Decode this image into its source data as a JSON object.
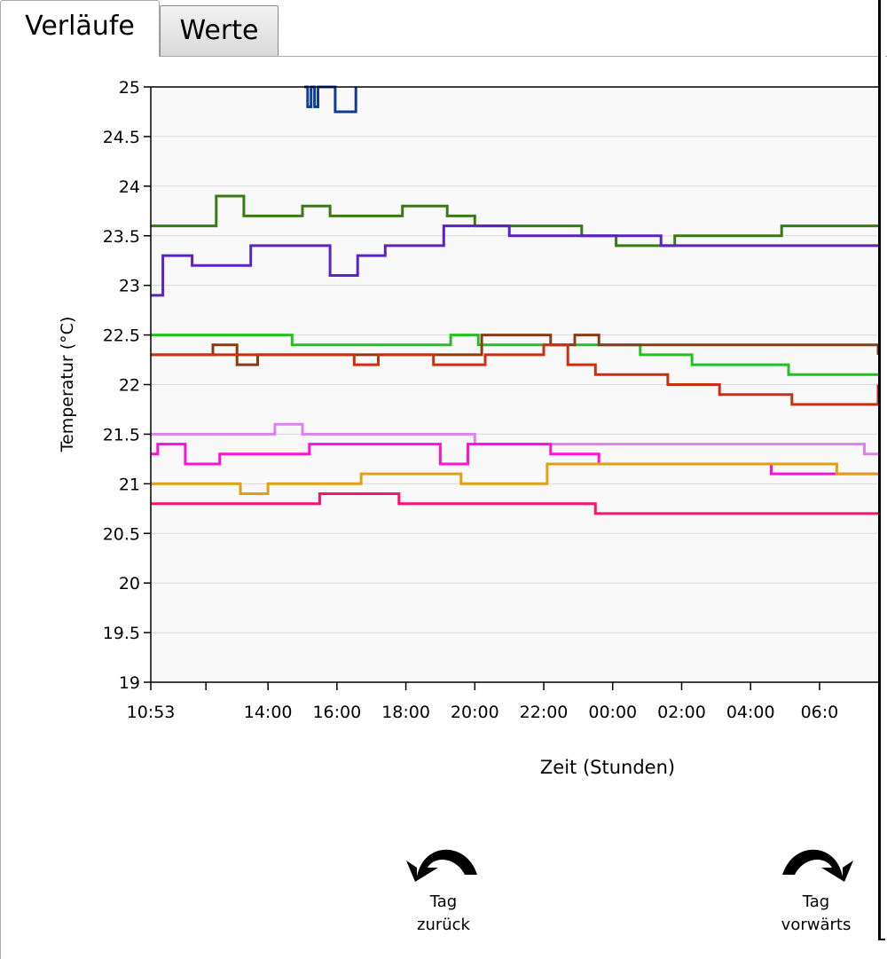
{
  "tabs": [
    {
      "label": "Verläufe",
      "active": true
    },
    {
      "label": "Werte",
      "active": false
    }
  ],
  "buttons": {
    "back": {
      "line1": "Tag",
      "line2": "zurück",
      "icon": "rotate-left-arrow-icon"
    },
    "forward": {
      "line1": "Tag",
      "line2": "vorwärts",
      "icon": "rotate-right-arrow-icon"
    }
  },
  "chart_data": {
    "type": "line",
    "step": true,
    "ylabel": "Temperatur (°C)",
    "xlabel": "Zeit (Stunden)",
    "ylim": [
      19,
      25
    ],
    "xlim_hours": [
      0,
      21.1
    ],
    "yticks": [
      "19",
      "19.5",
      "20",
      "20.5",
      "21",
      "21.5",
      "22",
      "22.5",
      "23",
      "23.5",
      "24",
      "24.5",
      "25"
    ],
    "xticks": [
      {
        "x": 0,
        "label": "10:53"
      },
      {
        "x": 1.6,
        "label": ""
      },
      {
        "x": 3.4,
        "label": "14:00"
      },
      {
        "x": 5.4,
        "label": "16:00"
      },
      {
        "x": 7.4,
        "label": "18:00"
      },
      {
        "x": 9.4,
        "label": "20:00"
      },
      {
        "x": 11.4,
        "label": "22:00"
      },
      {
        "x": 13.4,
        "label": "00:00"
      },
      {
        "x": 15.4,
        "label": "02:00"
      },
      {
        "x": 17.4,
        "label": "04:00"
      },
      {
        "x": 19.4,
        "label": "06:0"
      }
    ],
    "grid": true,
    "series": [
      {
        "color": "#3a7a12",
        "points": [
          [
            0,
            23.6
          ],
          [
            1.9,
            23.9
          ],
          [
            2.7,
            23.7
          ],
          [
            4.4,
            23.8
          ],
          [
            5.2,
            23.7
          ],
          [
            7.3,
            23.8
          ],
          [
            8.6,
            23.7
          ],
          [
            9.4,
            23.6
          ],
          [
            12.5,
            23.5
          ],
          [
            13.5,
            23.4
          ],
          [
            15.2,
            23.5
          ],
          [
            18.3,
            23.6
          ],
          [
            21.1,
            23.6
          ]
        ]
      },
      {
        "color": "#5a22c8",
        "points": [
          [
            0,
            22.9
          ],
          [
            0.35,
            23.3
          ],
          [
            1.2,
            23.2
          ],
          [
            2.9,
            23.4
          ],
          [
            5.2,
            23.1
          ],
          [
            6.0,
            23.3
          ],
          [
            6.8,
            23.4
          ],
          [
            8.5,
            23.6
          ],
          [
            10.4,
            23.5
          ],
          [
            11.0,
            23.5
          ],
          [
            14.8,
            23.4
          ],
          [
            21.1,
            23.4
          ]
        ]
      },
      {
        "color": "#22c022",
        "points": [
          [
            0,
            22.5
          ],
          [
            4.1,
            22.4
          ],
          [
            8.7,
            22.5
          ],
          [
            9.5,
            22.4
          ],
          [
            14.2,
            22.3
          ],
          [
            15.7,
            22.2
          ],
          [
            18.5,
            22.1
          ],
          [
            21.1,
            22.1
          ]
        ]
      },
      {
        "color": "#8b3a12",
        "points": [
          [
            0,
            22.3
          ],
          [
            1.8,
            22.4
          ],
          [
            2.5,
            22.2
          ],
          [
            3.1,
            22.3
          ],
          [
            4.1,
            22.3
          ],
          [
            9.6,
            22.5
          ],
          [
            11.6,
            22.4
          ],
          [
            12.3,
            22.5
          ],
          [
            13.0,
            22.4
          ],
          [
            21.1,
            22.3
          ]
        ]
      },
      {
        "color": "#c83010",
        "points": [
          [
            0,
            22.3
          ],
          [
            5.9,
            22.2
          ],
          [
            6.6,
            22.3
          ],
          [
            7.7,
            22.3
          ],
          [
            8.2,
            22.2
          ],
          [
            9.7,
            22.3
          ],
          [
            11.4,
            22.4
          ],
          [
            12.1,
            22.2
          ],
          [
            12.9,
            22.1
          ],
          [
            14.0,
            22.1
          ],
          [
            15.0,
            22.0
          ],
          [
            16.5,
            21.9
          ],
          [
            18.6,
            21.8
          ],
          [
            21.1,
            22.0
          ]
        ]
      },
      {
        "color": "#e080f0",
        "points": [
          [
            0,
            21.5
          ],
          [
            3.6,
            21.6
          ],
          [
            4.4,
            21.5
          ],
          [
            9.4,
            21.4
          ],
          [
            20.7,
            21.3
          ],
          [
            21.1,
            21.3
          ]
        ]
      },
      {
        "color": "#ff10d8",
        "points": [
          [
            0,
            21.3
          ],
          [
            0.2,
            21.4
          ],
          [
            1.0,
            21.2
          ],
          [
            2.0,
            21.3
          ],
          [
            4.6,
            21.4
          ],
          [
            8.4,
            21.2
          ],
          [
            9.2,
            21.4
          ],
          [
            11.6,
            21.3
          ],
          [
            13.0,
            21.2
          ],
          [
            18.0,
            21.1
          ],
          [
            21.1,
            21.1
          ]
        ]
      },
      {
        "color": "#e0a010",
        "points": [
          [
            0,
            21.0
          ],
          [
            2.6,
            20.9
          ],
          [
            3.4,
            21.0
          ],
          [
            6.1,
            21.1
          ],
          [
            9.0,
            21.0
          ],
          [
            11.5,
            21.2
          ],
          [
            19.9,
            21.1
          ],
          [
            21.1,
            21.1
          ]
        ]
      },
      {
        "color": "#ff1070",
        "points": [
          [
            0,
            20.8
          ],
          [
            4.9,
            20.9
          ],
          [
            7.2,
            20.8
          ],
          [
            12.9,
            20.7
          ],
          [
            21.1,
            20.7
          ]
        ]
      },
      {
        "color": "#103c96",
        "points": [
          [
            4.45,
            25.0
          ],
          [
            4.55,
            24.8
          ],
          [
            4.65,
            25.0
          ],
          [
            4.75,
            24.8
          ],
          [
            4.85,
            25.0
          ],
          [
            5.35,
            24.75
          ],
          [
            5.95,
            25.0
          ]
        ]
      }
    ]
  }
}
